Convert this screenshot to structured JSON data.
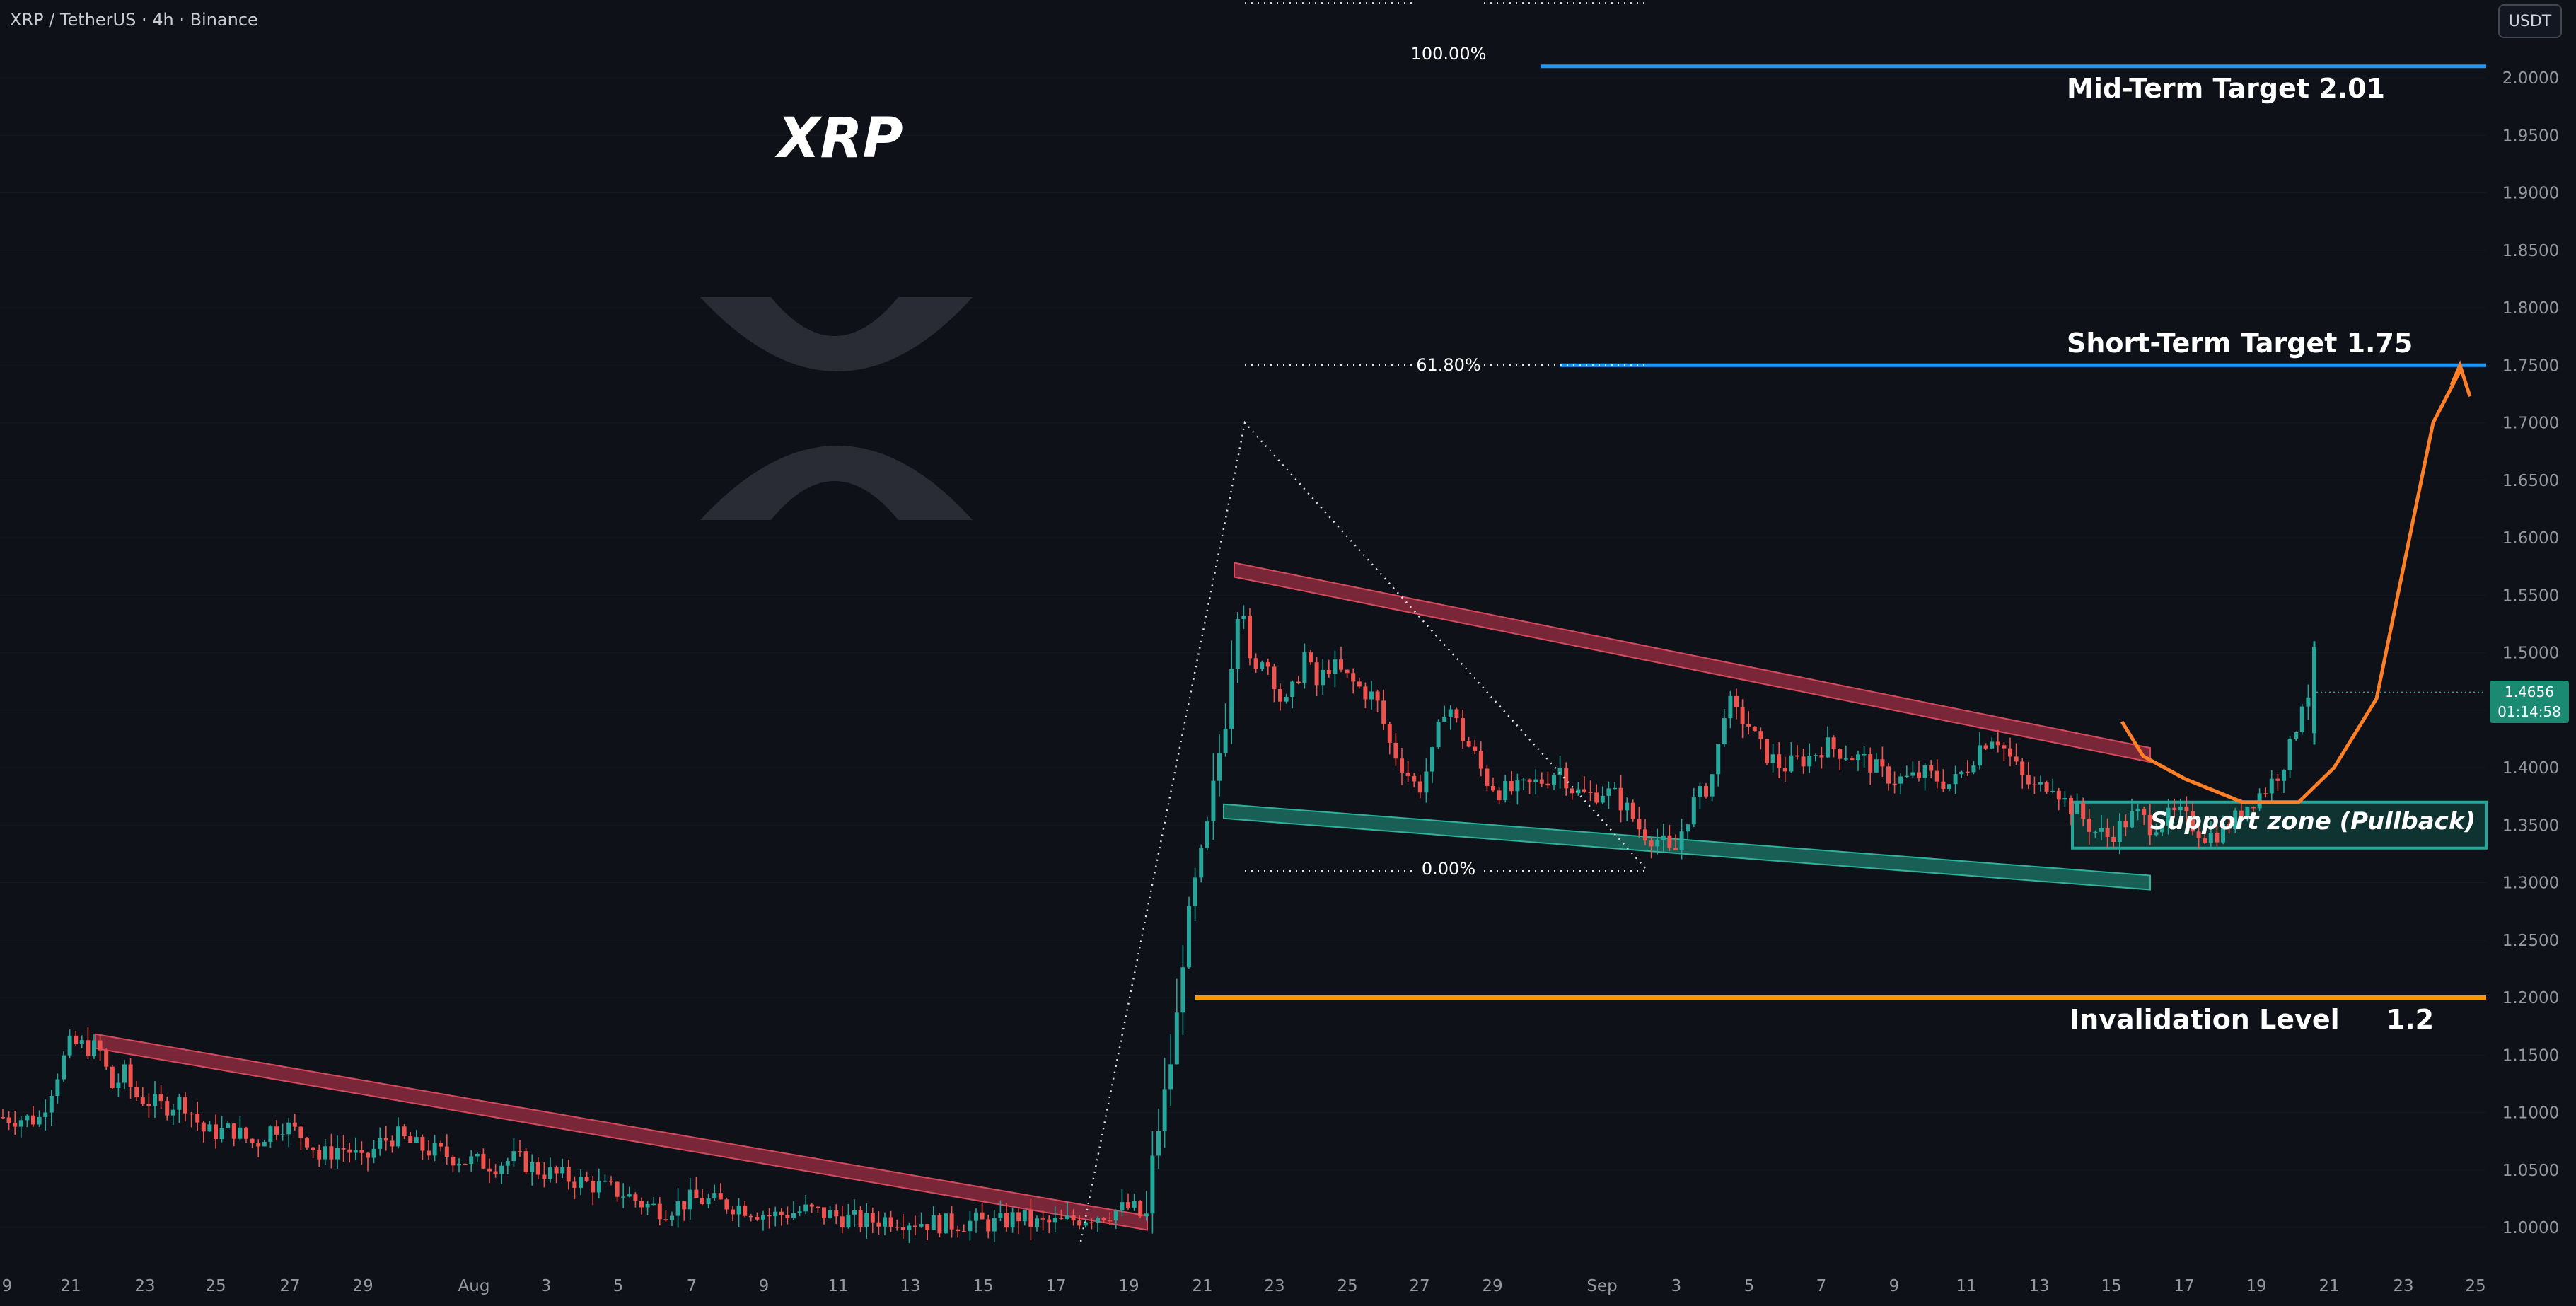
{
  "header": {
    "symbol_line": "XRP / TetherUS · 4h · Binance",
    "currency_button": "USDT"
  },
  "overlay": {
    "title": "XRP",
    "logo": "xrp-logo-icon"
  },
  "price_badge": {
    "price": "1.4656",
    "countdown": "01:14:58"
  },
  "annotations": {
    "mid_target": "Mid-Term Target 2.01",
    "short_target": "Short-Term Target 1.75",
    "invalidation": "Invalidation Level     1.2",
    "support_zone": "Support zone (Pullback)",
    "fib_100": "100.00%",
    "fib_618": "61.80%",
    "fib_0": "0.00%"
  },
  "colors": {
    "background": "#0f1118",
    "bull": "#26a69a",
    "bear": "#ef5350",
    "target_line": "#2196f3",
    "invalidation_line": "#ff9800",
    "projection": "#ff7f27",
    "resistance_band": "#b2334a",
    "support_band": "#1e8a78",
    "text": "#d1d4dc"
  },
  "chart_data": {
    "type": "candlestick",
    "title": "XRP / TetherUS · 4h · Binance",
    "ylim": [
      0.97,
      2.03
    ],
    "y_ticks": [
      "1.0000",
      "1.0500",
      "1.1000",
      "1.1500",
      "1.2000",
      "1.2500",
      "1.3000",
      "1.3500",
      "1.4000",
      "1.4500",
      "1.5000",
      "1.5500",
      "1.6000",
      "1.6500",
      "1.7000",
      "1.7500",
      "1.8000",
      "1.8500",
      "1.9000",
      "1.9500",
      "2.0000"
    ],
    "x_ticks": [
      "9",
      "21",
      "23",
      "25",
      "27",
      "29",
      "Aug",
      "3",
      "5",
      "7",
      "9",
      "11",
      "13",
      "15",
      "17",
      "19",
      "21",
      "23",
      "25",
      "27",
      "29",
      "Sep",
      "3",
      "5",
      "7",
      "9",
      "11",
      "13",
      "15",
      "17",
      "19",
      "21",
      "23",
      "25"
    ],
    "close_path": [
      [
        0,
        1.096
      ],
      [
        55,
        1.094
      ],
      [
        85,
        1.14
      ],
      [
        100,
        1.16
      ],
      [
        140,
        1.155
      ],
      [
        160,
        1.12
      ],
      [
        175,
        1.135
      ],
      [
        190,
        1.115
      ],
      [
        230,
        1.105
      ],
      [
        260,
        1.11
      ],
      [
        290,
        1.082
      ],
      [
        330,
        1.085
      ],
      [
        360,
        1.072
      ],
      [
        380,
        1.085
      ],
      [
        400,
        1.09
      ],
      [
        440,
        1.075
      ],
      [
        450,
        1.06
      ],
      [
        480,
        1.07
      ],
      [
        500,
        1.065
      ],
      [
        510,
        1.055
      ],
      [
        540,
        1.075
      ],
      [
        560,
        1.08
      ],
      [
        590,
        1.07
      ],
      [
        620,
        1.065
      ],
      [
        660,
        1.058
      ],
      [
        700,
        1.055
      ],
      [
        730,
        1.06
      ],
      [
        760,
        1.05
      ],
      [
        790,
        1.045
      ],
      [
        820,
        1.04
      ],
      [
        850,
        1.035
      ],
      [
        880,
        1.03
      ],
      [
        910,
        1.02
      ],
      [
        940,
        1.015
      ],
      [
        980,
        1.025
      ],
      [
        1010,
        1.022
      ],
      [
        1050,
        1.018
      ],
      [
        1090,
        1.01
      ],
      [
        1140,
        1.015
      ],
      [
        1180,
        1.01
      ],
      [
        1220,
        1.005
      ],
      [
        1260,
        1.008
      ],
      [
        1300,
        1.005
      ],
      [
        1340,
        1.003
      ],
      [
        1380,
        1.005
      ],
      [
        1400,
        1.003
      ],
      [
        1420,
        1.005
      ],
      [
        1440,
        1.01
      ],
      [
        1460,
        1.003
      ],
      [
        1500,
        1.004
      ],
      [
        1540,
        1.01
      ],
      [
        1560,
        1.012
      ],
      [
        1600,
        1.018
      ],
      [
        1620,
        1.005
      ],
      [
        1630,
        1.06
      ],
      [
        1645,
        1.11
      ],
      [
        1660,
        1.16
      ],
      [
        1675,
        1.25
      ],
      [
        1690,
        1.3
      ],
      [
        1705,
        1.34
      ],
      [
        1720,
        1.4
      ],
      [
        1735,
        1.45
      ],
      [
        1745,
        1.52
      ],
      [
        1755,
        1.56
      ],
      [
        1770,
        1.47
      ],
      [
        1785,
        1.5
      ],
      [
        1800,
        1.48
      ],
      [
        1815,
        1.45
      ],
      [
        1830,
        1.47
      ],
      [
        1845,
        1.5
      ],
      [
        1860,
        1.47
      ],
      [
        1880,
        1.49
      ],
      [
        1900,
        1.48
      ],
      [
        1920,
        1.47
      ],
      [
        1945,
        1.46
      ],
      [
        1965,
        1.42
      ],
      [
        1985,
        1.4
      ],
      [
        2005,
        1.38
      ],
      [
        2025,
        1.41
      ],
      [
        2045,
        1.46
      ],
      [
        2065,
        1.43
      ],
      [
        2085,
        1.41
      ],
      [
        2100,
        1.39
      ],
      [
        2120,
        1.38
      ],
      [
        2145,
        1.38
      ],
      [
        2165,
        1.385
      ],
      [
        2185,
        1.39
      ],
      [
        2205,
        1.4
      ],
      [
        2225,
        1.38
      ],
      [
        2245,
        1.375
      ],
      [
        2265,
        1.38
      ],
      [
        2285,
        1.375
      ],
      [
        2305,
        1.36
      ],
      [
        2320,
        1.345
      ],
      [
        2335,
        1.34
      ],
      [
        2350,
        1.335
      ],
      [
        2365,
        1.32
      ],
      [
        2380,
        1.35
      ],
      [
        2395,
        1.37
      ],
      [
        2410,
        1.38
      ],
      [
        2425,
        1.4
      ],
      [
        2440,
        1.46
      ],
      [
        2455,
        1.445
      ],
      [
        2470,
        1.44
      ],
      [
        2485,
        1.42
      ],
      [
        2500,
        1.41
      ],
      [
        2520,
        1.4
      ],
      [
        2540,
        1.405
      ],
      [
        2560,
        1.41
      ],
      [
        2580,
        1.42
      ],
      [
        2600,
        1.415
      ],
      [
        2620,
        1.41
      ],
      [
        2640,
        1.405
      ],
      [
        2660,
        1.395
      ],
      [
        2680,
        1.39
      ],
      [
        2700,
        1.39
      ],
      [
        2720,
        1.395
      ],
      [
        2740,
        1.39
      ],
      [
        2760,
        1.385
      ],
      [
        2780,
        1.4
      ],
      [
        2800,
        1.42
      ],
      [
        2820,
        1.43
      ],
      [
        2840,
        1.41
      ],
      [
        2860,
        1.39
      ],
      [
        2880,
        1.38
      ],
      [
        2900,
        1.39
      ],
      [
        2920,
        1.37
      ],
      [
        2940,
        1.36
      ],
      [
        2960,
        1.345
      ],
      [
        2980,
        1.34
      ],
      [
        3000,
        1.35
      ],
      [
        3020,
        1.36
      ],
      [
        3040,
        1.35
      ],
      [
        3060,
        1.355
      ],
      [
        3080,
        1.36
      ],
      [
        3100,
        1.35
      ],
      [
        3120,
        1.34
      ],
      [
        3140,
        1.345
      ],
      [
        3160,
        1.355
      ],
      [
        3180,
        1.37
      ],
      [
        3200,
        1.38
      ],
      [
        3215,
        1.39
      ],
      [
        3225,
        1.4
      ],
      [
        3240,
        1.42
      ],
      [
        3255,
        1.46
      ],
      [
        3265,
        1.466
      ]
    ],
    "levels": [
      {
        "label": "Mid-Term Target 2.01",
        "value": 2.01
      },
      {
        "label": "Short-Term Target 1.75",
        "value": 1.75
      },
      {
        "label": "Invalidation Level 1.2",
        "value": 1.2
      }
    ],
    "fibonacci": [
      {
        "label": "100.00%",
        "value": 2.01
      },
      {
        "label": "61.80%",
        "value": 1.75
      },
      {
        "label": "0.00%",
        "value": 1.31
      }
    ],
    "support_zone": {
      "label": "Support zone (Pullback)",
      "low": 1.33,
      "high": 1.37
    },
    "last_price": 1.4656
  }
}
